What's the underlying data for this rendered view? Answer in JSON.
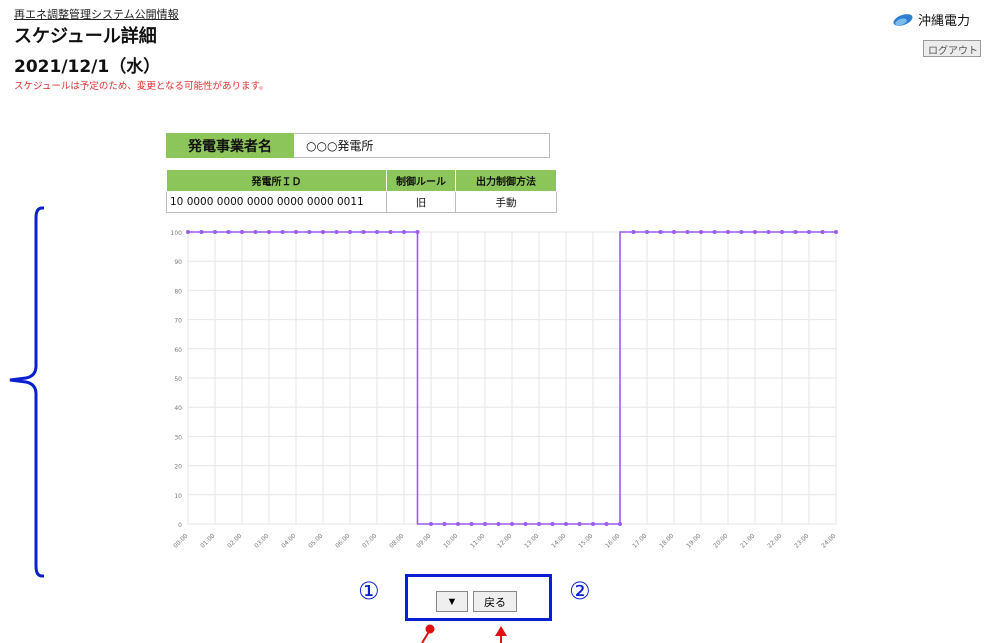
{
  "header": {
    "breadcrumb": "再エネ調整管理システム公開情報",
    "title": "スケジュール詳細",
    "date": "2021/12/1（水）",
    "notice": "スケジュールは予定のため、変更となる可能性があります。",
    "brand": "沖縄電力",
    "logout_label": "ログアウト"
  },
  "company": {
    "label": "発電事業者名",
    "value": "○○○発電所"
  },
  "plant_table": {
    "headers": [
      "発電所ＩＤ",
      "制御ルール",
      "出力制御方法"
    ],
    "rows": [
      [
        "10 0000 0000 0000 0000 0000 0011",
        "旧",
        "手動"
      ]
    ]
  },
  "chart_data": {
    "type": "line",
    "x": [
      "00:00",
      "00:30",
      "01:00",
      "01:30",
      "02:00",
      "02:30",
      "03:00",
      "03:30",
      "04:00",
      "04:30",
      "05:00",
      "05:30",
      "06:00",
      "06:30",
      "07:00",
      "07:30",
      "08:00",
      "08:30",
      "09:00",
      "09:30",
      "10:00",
      "10:30",
      "11:00",
      "11:30",
      "12:00",
      "12:30",
      "13:00",
      "13:30",
      "14:00",
      "14:30",
      "15:00",
      "15:30",
      "16:00",
      "16:30",
      "17:00",
      "17:30",
      "18:00",
      "18:30",
      "19:00",
      "19:30",
      "20:00",
      "20:30",
      "21:00",
      "21:30",
      "22:00",
      "22:30",
      "23:00",
      "23:30",
      "24:00"
    ],
    "x_tick_labels": [
      "00:00",
      "01:00",
      "02:00",
      "03:00",
      "04:00",
      "05:00",
      "06:00",
      "07:00",
      "08:00",
      "09:00",
      "10:00",
      "11:00",
      "12:00",
      "13:00",
      "14:00",
      "15:00",
      "16:00",
      "17:00",
      "18:00",
      "19:00",
      "20:00",
      "21:00",
      "22:00",
      "23:00",
      "24:00"
    ],
    "series": [
      {
        "values": [
          100,
          100,
          100,
          100,
          100,
          100,
          100,
          100,
          100,
          100,
          100,
          100,
          100,
          100,
          100,
          100,
          100,
          100,
          0,
          0,
          0,
          0,
          0,
          0,
          0,
          0,
          0,
          0,
          0,
          0,
          0,
          0,
          0,
          100,
          100,
          100,
          100,
          100,
          100,
          100,
          100,
          100,
          100,
          100,
          100,
          100,
          100,
          100,
          100
        ],
        "color": "#9b5cf0"
      }
    ],
    "y_ticks": [
      0,
      10,
      20,
      30,
      40,
      50,
      60,
      70,
      80,
      90,
      100
    ],
    "ylim": [
      0,
      100
    ],
    "step": true,
    "grid": true
  },
  "nav": {
    "marker_1": "①",
    "marker_2": "②",
    "down_label": "▼",
    "back_label": "戻る"
  },
  "colors": {
    "accent_green": "#8cc65a",
    "annotation_blue": "#0a1fd0",
    "series": "#9b5cf0",
    "notice_red": "#e03030"
  }
}
